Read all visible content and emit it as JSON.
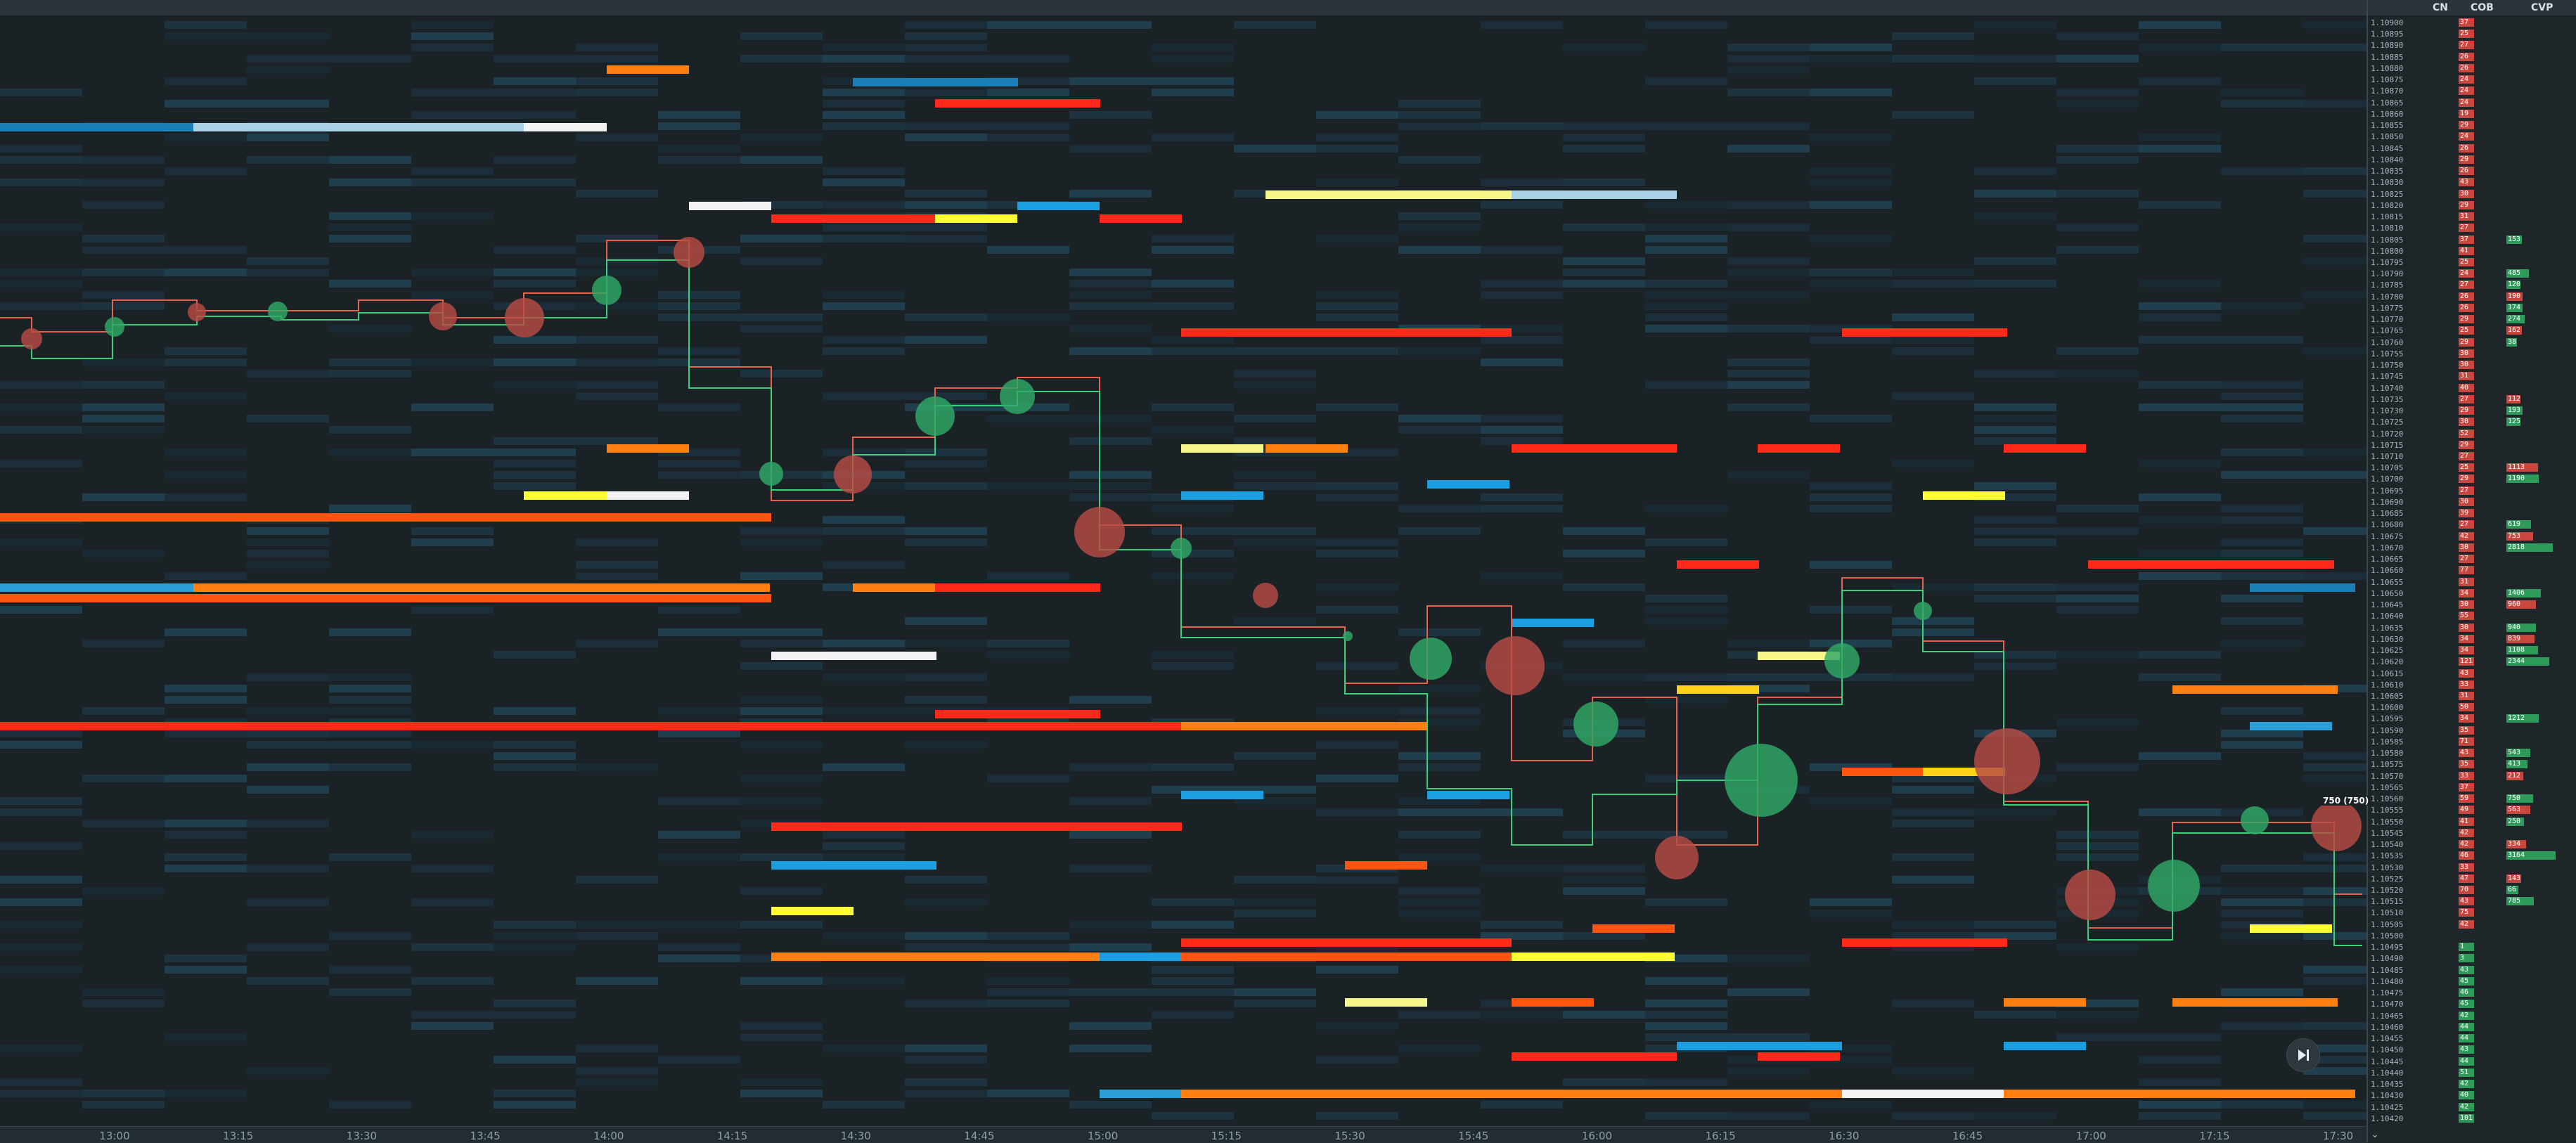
{
  "ladder": {
    "headers": {
      "cn": "CN",
      "cob": "COB",
      "cvp": "CVP"
    },
    "current_price_label": "750 (750)",
    "rows": [
      {
        "p": "1.10900",
        "cn": "37",
        "cvp": ""
      },
      {
        "p": "1.10895",
        "cn": "25",
        "cvp": ""
      },
      {
        "p": "1.10890",
        "cn": "27",
        "cvp": ""
      },
      {
        "p": "1.10885",
        "cn": "26",
        "cvp": ""
      },
      {
        "p": "1.10880",
        "cn": "26",
        "cvp": ""
      },
      {
        "p": "1.10875",
        "cn": "24",
        "cvp": ""
      },
      {
        "p": "1.10870",
        "cn": "24",
        "cvp": ""
      },
      {
        "p": "1.10865",
        "cn": "24",
        "cvp": ""
      },
      {
        "p": "1.10860",
        "cn": "19",
        "cvp": ""
      },
      {
        "p": "1.10855",
        "cn": "29",
        "cvp": ""
      },
      {
        "p": "1.10850",
        "cn": "24",
        "cvp": ""
      },
      {
        "p": "1.10845",
        "cn": "26",
        "cvp": ""
      },
      {
        "p": "1.10840",
        "cn": "29",
        "cvp": ""
      },
      {
        "p": "1.10835",
        "cn": "26",
        "cvp": ""
      },
      {
        "p": "1.10830",
        "cn": "43",
        "cvp": ""
      },
      {
        "p": "1.10825",
        "cn": "30",
        "cvp": ""
      },
      {
        "p": "1.10820",
        "cn": "29",
        "cvp": ""
      },
      {
        "p": "1.10815",
        "cn": "31",
        "cvp": ""
      },
      {
        "p": "1.10810",
        "cn": "27",
        "cvp": ""
      },
      {
        "p": "1.10805",
        "cn": "37",
        "cvp": "153"
      },
      {
        "p": "1.10800",
        "cn": "41",
        "cvp": ""
      },
      {
        "p": "1.10795",
        "cn": "25",
        "cvp": ""
      },
      {
        "p": "1.10790",
        "cn": "24",
        "cvp": "485"
      },
      {
        "p": "1.10785",
        "cn": "27",
        "cvp": "120"
      },
      {
        "p": "1.10780",
        "cn": "26",
        "cvp": "190"
      },
      {
        "p": "1.10775",
        "cn": "26",
        "cvp": "174"
      },
      {
        "p": "1.10770",
        "cn": "29",
        "cvp": "274"
      },
      {
        "p": "1.10765",
        "cn": "25",
        "cvp": "162"
      },
      {
        "p": "1.10760",
        "cn": "29",
        "cvp": "38"
      },
      {
        "p": "1.10755",
        "cn": "30",
        "cvp": ""
      },
      {
        "p": "1.10750",
        "cn": "30",
        "cvp": ""
      },
      {
        "p": "1.10745",
        "cn": "31",
        "cvp": ""
      },
      {
        "p": "1.10740",
        "cn": "40",
        "cvp": ""
      },
      {
        "p": "1.10735",
        "cn": "27",
        "cvp": "112"
      },
      {
        "p": "1.10730",
        "cn": "29",
        "cvp": "193"
      },
      {
        "p": "1.10725",
        "cn": "30",
        "cvp": "125"
      },
      {
        "p": "1.10720",
        "cn": "52",
        "cvp": ""
      },
      {
        "p": "1.10715",
        "cn": "29",
        "cvp": ""
      },
      {
        "p": "1.10710",
        "cn": "27",
        "cvp": ""
      },
      {
        "p": "1.10705",
        "cn": "25",
        "cvp": "1113"
      },
      {
        "p": "1.10700",
        "cn": "29",
        "cvp": "1190"
      },
      {
        "p": "1.10695",
        "cn": "27",
        "cvp": ""
      },
      {
        "p": "1.10690",
        "cn": "30",
        "cvp": ""
      },
      {
        "p": "1.10685",
        "cn": "39",
        "cvp": ""
      },
      {
        "p": "1.10680",
        "cn": "27",
        "cvp": "619"
      },
      {
        "p": "1.10675",
        "cn": "42",
        "cvp": "753"
      },
      {
        "p": "1.10670",
        "cn": "30",
        "cvp": "2818"
      },
      {
        "p": "1.10665",
        "cn": "27",
        "cvp": ""
      },
      {
        "p": "1.10660",
        "cn": "77",
        "cvp": ""
      },
      {
        "p": "1.10655",
        "cn": "31",
        "cvp": ""
      },
      {
        "p": "1.10650",
        "cn": "34",
        "cvp": "1406"
      },
      {
        "p": "1.10645",
        "cn": "30",
        "cvp": "960"
      },
      {
        "p": "1.10640",
        "cn": "55",
        "cvp": ""
      },
      {
        "p": "1.10635",
        "cn": "30",
        "cvp": "940"
      },
      {
        "p": "1.10630",
        "cn": "34",
        "cvp": "839"
      },
      {
        "p": "1.10625",
        "cn": "34",
        "cvp": "1108"
      },
      {
        "p": "1.10620",
        "cn": "121",
        "cvp": "2344"
      },
      {
        "p": "1.10615",
        "cn": "43",
        "cvp": ""
      },
      {
        "p": "1.10610",
        "cn": "33",
        "cvp": ""
      },
      {
        "p": "1.10605",
        "cn": "31",
        "cvp": ""
      },
      {
        "p": "1.10600",
        "cn": "50",
        "cvp": ""
      },
      {
        "p": "1.10595",
        "cn": "34",
        "cvp": "1212"
      },
      {
        "p": "1.10590",
        "cn": "35",
        "cvp": ""
      },
      {
        "p": "1.10585",
        "cn": "71",
        "cvp": ""
      },
      {
        "p": "1.10580",
        "cn": "43",
        "cvp": "543"
      },
      {
        "p": "1.10575",
        "cn": "35",
        "cvp": "413"
      },
      {
        "p": "1.10570",
        "cn": "33",
        "cvp": "212"
      },
      {
        "p": "1.10565",
        "cn": "37",
        "cvp": ""
      },
      {
        "p": "1.10560",
        "cn": "59",
        "cvp": "750"
      },
      {
        "p": "1.10555",
        "cn": "49",
        "cvp": "563"
      },
      {
        "p": "1.10550",
        "cn": "41",
        "cvp": "250"
      },
      {
        "p": "1.10545",
        "cn": "42",
        "cvp": ""
      },
      {
        "p": "1.10540",
        "cn": "42",
        "cvp": "334"
      },
      {
        "p": "1.10535",
        "cn": "46",
        "cvp": "3164"
      },
      {
        "p": "1.10530",
        "cn": "33",
        "cvp": ""
      },
      {
        "p": "1.10525",
        "cn": "47",
        "cvp": "143"
      },
      {
        "p": "1.10520",
        "cn": "70",
        "cvp": "66"
      },
      {
        "p": "1.10515",
        "cn": "43",
        "cvp": "785"
      },
      {
        "p": "1.10510",
        "cn": "75",
        "cvp": ""
      },
      {
        "p": "1.10505",
        "cn": "42",
        "cvp": ""
      },
      {
        "p": "1.10500",
        "cn": "",
        "cvp": ""
      },
      {
        "p": "1.10495",
        "cn": "1",
        "cvp": ""
      },
      {
        "p": "1.10490",
        "cn": "3",
        "cvp": ""
      },
      {
        "p": "1.10485",
        "cn": "43",
        "cvp": ""
      },
      {
        "p": "1.10480",
        "cn": "45",
        "cvp": ""
      },
      {
        "p": "1.10475",
        "cn": "46",
        "cvp": ""
      },
      {
        "p": "1.10470",
        "cn": "45",
        "cvp": ""
      },
      {
        "p": "1.10465",
        "cn": "42",
        "cvp": ""
      },
      {
        "p": "1.10460",
        "cn": "44",
        "cvp": ""
      },
      {
        "p": "1.10455",
        "cn": "44",
        "cvp": ""
      },
      {
        "p": "1.10450",
        "cn": "43",
        "cvp": ""
      },
      {
        "p": "1.10445",
        "cn": "44",
        "cvp": ""
      },
      {
        "p": "1.10440",
        "cn": "51",
        "cvp": ""
      },
      {
        "p": "1.10435",
        "cn": "42",
        "cvp": ""
      },
      {
        "p": "1.10430",
        "cn": "40",
        "cvp": ""
      },
      {
        "p": "1.10425",
        "cn": "42",
        "cvp": ""
      },
      {
        "p": "1.10420",
        "cn": "101",
        "cvp": ""
      }
    ]
  },
  "time_axis": {
    "labels": [
      "13:00",
      "13:15",
      "13:30",
      "13:45",
      "14:00",
      "14:15",
      "14:30",
      "14:45",
      "15:00",
      "15:15",
      "15:30",
      "15:45",
      "16:00",
      "16:15",
      "16:30",
      "16:45",
      "17:00",
      "17:15",
      "17:30"
    ]
  },
  "colors": {
    "background": "#1b2226",
    "ask_line": "#e8624f",
    "bid_line": "#3ccf7a",
    "buy_bubble": "#2fa866",
    "sell_bubble": "#b84a45"
  },
  "icons": {
    "skip": "skip-to-end-icon",
    "chevron": "chevron-down-icon"
  }
}
